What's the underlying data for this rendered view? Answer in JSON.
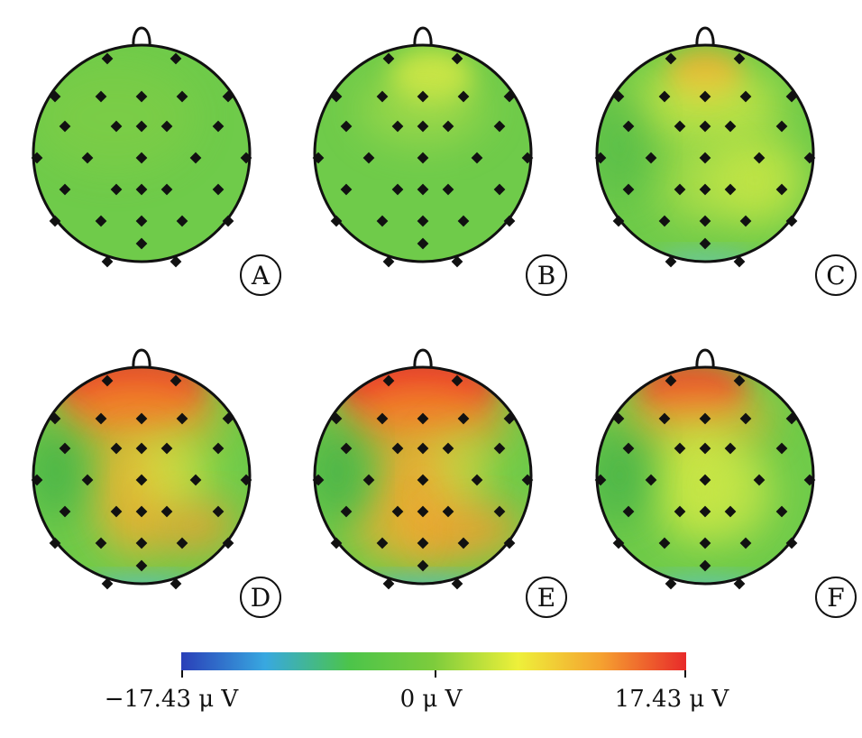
{
  "maps": [
    {
      "label": "A",
      "intensity": "none"
    },
    {
      "label": "B",
      "intensity": "faint"
    },
    {
      "label": "C",
      "intensity": "weak"
    },
    {
      "label": "D",
      "intensity": "strong"
    },
    {
      "label": "E",
      "intensity": "strongest"
    },
    {
      "label": "F",
      "intensity": "moderate"
    }
  ],
  "colorbar": {
    "min_label": "−17.43 μ V",
    "mid_label": "0 μ V",
    "max_label": "17.43 μ V",
    "min_value": -17.43,
    "max_value": 17.43,
    "colors": [
      "#2a3fb8",
      "#38a8e0",
      "#4cc44a",
      "#7dcc3c",
      "#eef03a",
      "#f5a030",
      "#e82a2a"
    ]
  },
  "colors": {
    "background_green": "#6fcb4a",
    "electrode": "#111111",
    "outline": "#111111"
  }
}
